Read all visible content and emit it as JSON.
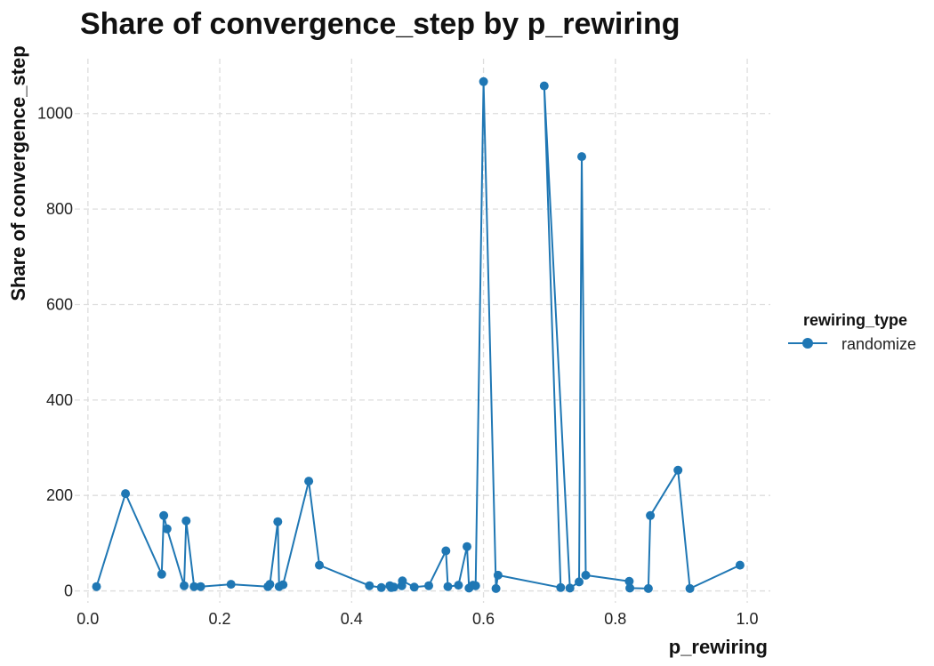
{
  "chart_data": {
    "type": "line",
    "title": "Share of convergence_step by p_rewiring",
    "xlabel": "p_rewiring",
    "ylabel": "Share of convergence_step",
    "xlim": [
      -0.02,
      1.035
    ],
    "ylim": [
      -25,
      1115
    ],
    "xticks": [
      0.0,
      0.2,
      0.4,
      0.6,
      0.8,
      1.0
    ],
    "xtick_labels": [
      "0.0",
      "0.2",
      "0.4",
      "0.6",
      "0.8",
      "1.0"
    ],
    "yticks": [
      0,
      200,
      400,
      600,
      800,
      1000
    ],
    "ytick_labels": [
      "0",
      "200",
      "400",
      "600",
      "800",
      "1000"
    ],
    "grid": true,
    "legend": {
      "title": "rewiring_type",
      "placement": "right"
    },
    "series": [
      {
        "name": "randomize",
        "color": "#1f77b4",
        "points": [
          [
            0.013,
            9
          ],
          [
            0.057,
            204
          ],
          [
            0.112,
            35
          ],
          [
            0.115,
            158
          ],
          [
            0.12,
            130
          ],
          [
            0.146,
            11
          ],
          [
            0.149,
            147
          ],
          [
            0.161,
            9
          ],
          [
            0.171,
            9
          ],
          [
            0.217,
            14
          ],
          [
            0.273,
            9
          ],
          [
            0.276,
            14
          ],
          [
            0.288,
            145
          ],
          [
            0.29,
            9
          ],
          [
            0.296,
            13
          ],
          [
            0.335,
            230
          ],
          [
            0.351,
            54
          ],
          [
            0.427,
            11
          ],
          [
            0.445,
            7
          ],
          [
            0.458,
            11
          ],
          [
            0.46,
            7
          ],
          [
            0.464,
            8
          ],
          [
            0.476,
            11
          ],
          [
            0.477,
            21
          ],
          [
            0.495,
            8
          ],
          [
            0.517,
            11
          ],
          [
            0.543,
            84
          ],
          [
            0.546,
            9
          ],
          [
            0.562,
            12
          ],
          [
            0.575,
            93
          ],
          [
            0.578,
            6
          ],
          [
            0.584,
            12
          ],
          [
            0.588,
            11
          ],
          [
            0.6,
            1067
          ],
          [
            0.619,
            5
          ],
          [
            0.622,
            33
          ],
          [
            0.717,
            7
          ],
          [
            0.692,
            1058
          ],
          [
            0.731,
            6
          ],
          [
            0.745,
            19
          ],
          [
            0.749,
            910
          ],
          [
            0.755,
            33
          ],
          [
            0.821,
            20
          ],
          [
            0.822,
            6
          ],
          [
            0.85,
            5
          ],
          [
            0.853,
            158
          ],
          [
            0.895,
            253
          ],
          [
            0.913,
            5
          ],
          [
            0.989,
            54
          ]
        ]
      }
    ]
  }
}
